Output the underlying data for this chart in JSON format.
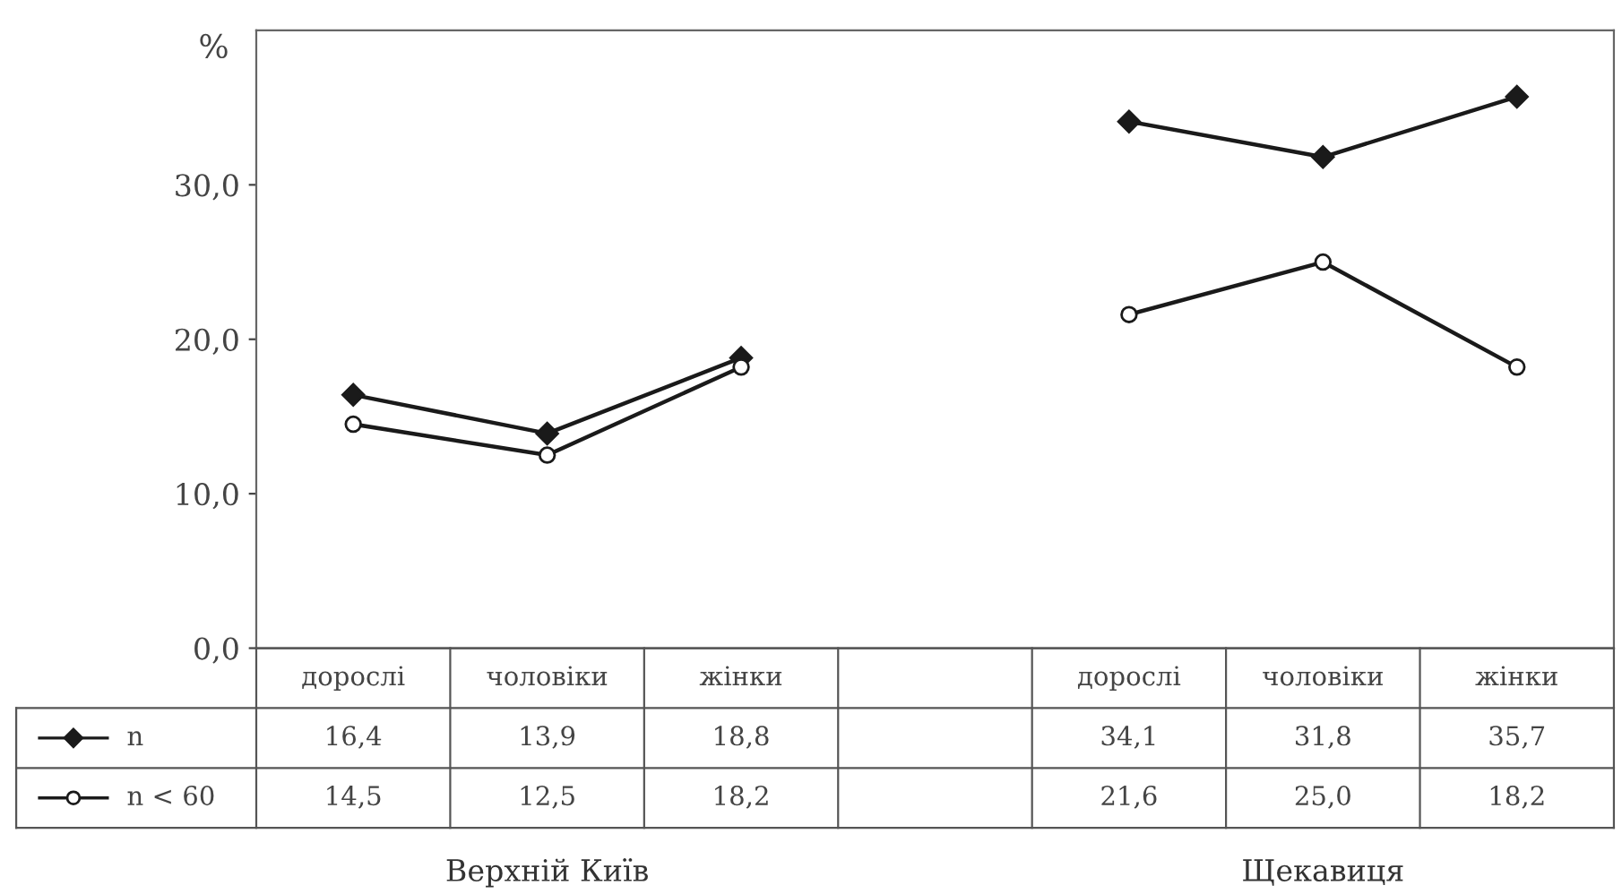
{
  "chart_data": {
    "type": "line",
    "ylabel": "%",
    "categories": [
      "дорослі",
      "чоловіки",
      "жінки",
      null,
      "дорослі",
      "чоловіки",
      "жінки"
    ],
    "series": [
      {
        "name": "n",
        "color": "#1a1a1a",
        "marker": "diamond",
        "values": [
          16.4,
          13.9,
          18.8,
          null,
          34.1,
          31.8,
          35.7
        ],
        "value_labels": [
          "16,4",
          "13,9",
          "18,8",
          null,
          "34,1",
          "31,8",
          "35,7"
        ]
      },
      {
        "name": "n < 60",
        "color": "#1a1a1a",
        "marker": "circle",
        "values": [
          14.5,
          12.5,
          18.2,
          null,
          21.6,
          25.0,
          18.2
        ],
        "value_labels": [
          "14,5",
          "12,5",
          "18,2",
          null,
          "21,6",
          "25,0",
          "18,2"
        ]
      }
    ],
    "ylim": [
      0,
      40
    ],
    "yticks": [
      {
        "value": 0,
        "label": "0,0"
      },
      {
        "value": 10,
        "label": "10,0"
      },
      {
        "value": 20,
        "label": "20,0"
      },
      {
        "value": 30,
        "label": "30,0"
      }
    ],
    "grid": false,
    "legend": "bottom left",
    "line_style": "solid",
    "annotations": [
      "Верхній Київ",
      "Щекавиця"
    ]
  }
}
